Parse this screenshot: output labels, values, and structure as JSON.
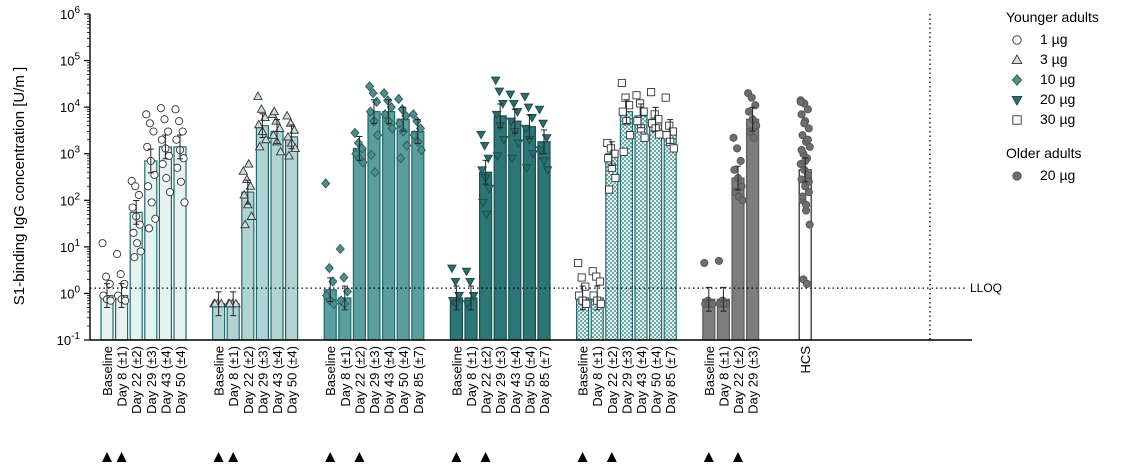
{
  "chart_data": {
    "type": "bar",
    "y_scale": "log",
    "ylim": [
      0.1,
      1000000
    ],
    "ylabel": "S1-binding IgG concentration [U/m ]",
    "y_tick_exponents": [
      -1,
      0,
      1,
      2,
      3,
      4,
      5,
      6
    ],
    "y_tick_base": "10",
    "lloq": {
      "value": 1.3,
      "label": "LLOQ"
    },
    "legend_groups": [
      {
        "title": "Younger adults",
        "entries": [
          {
            "label": "1 µg",
            "marker": "circle-open"
          },
          {
            "label": "3 µg",
            "marker": "triangle-up-light"
          },
          {
            "label": "10 µg",
            "marker": "diamond-teal"
          },
          {
            "label": "20 µg",
            "marker": "triangle-down-dark"
          },
          {
            "label": "30 µg",
            "marker": "square-open"
          }
        ]
      },
      {
        "title": "Older adults",
        "entries": [
          {
            "label": "20 µg",
            "marker": "circle-gray"
          }
        ]
      }
    ],
    "groups": [
      {
        "name": "Younger adults 1 µg",
        "marker": "circle-open",
        "bar_fill": "#e5f2f2",
        "bar_stroke": "#1f6b6b",
        "pattern": "",
        "categories": [
          "Baseline",
          "Day 8 (±1)",
          "Day 22 (±2)",
          "Day 29 (±3)",
          "Day 43 (±4)",
          "Day 50 (±4)"
        ],
        "values": [
          0.9,
          0.9,
          55,
          700,
          1400,
          1400
        ],
        "points": [
          [
            12,
            2.3,
            1.6,
            0.9,
            0.75,
            0.7
          ],
          [
            7,
            2.6,
            1.6,
            0.9,
            0.75,
            0.7
          ],
          [
            260,
            200,
            130,
            70,
            45,
            30,
            20,
            12,
            8,
            6
          ],
          [
            7000,
            4500,
            3000,
            1400,
            700,
            350,
            200,
            90,
            40,
            25
          ],
          [
            9500,
            5500,
            3000,
            2000,
            1300,
            900,
            600,
            300,
            150
          ],
          [
            9000,
            5000,
            3000,
            2000,
            1200,
            800,
            500,
            250,
            90
          ]
        ],
        "markers": [
          1,
          2
        ]
      },
      {
        "name": "Younger adults 3 µg",
        "marker": "triangle-up-light",
        "bar_fill": "#b2d3d3",
        "bar_stroke": "#1f6b6b",
        "pattern": "",
        "categories": [
          "Baseline",
          "Day 8 (±1)",
          "Day 22 (±2)",
          "Day 29 (±3)",
          "Day 43 (±4)",
          "Day 50 (±4)"
        ],
        "values": [
          0.6,
          0.6,
          150,
          4000,
          3000,
          2300
        ],
        "points": [
          [
            0.6,
            0.6,
            0.6,
            0.6
          ],
          [
            0.6,
            0.6,
            0.6,
            0.6
          ],
          [
            420,
            280,
            200,
            130,
            80,
            45,
            30,
            600
          ],
          [
            17000,
            9000,
            6000,
            4200,
            3000,
            2000,
            1400
          ],
          [
            7000,
            5000,
            3500,
            2500,
            1800,
            1100,
            8000
          ],
          [
            6500,
            4500,
            3200,
            2300,
            1700,
            1300,
            900
          ]
        ],
        "markers": [
          1,
          2
        ]
      },
      {
        "name": "Younger adults 10 µg",
        "marker": "diamond-teal",
        "bar_fill": "#5b9e9e",
        "bar_stroke": "#1f6b6b",
        "pattern": "",
        "categories": [
          "Baseline",
          "Day 8 (±1)",
          "Day 22 (±2)",
          "Day 29 (±3)",
          "Day 43 (±4)",
          "Day 50 (±4)",
          "Day 85 (±7)"
        ],
        "values": [
          1.2,
          0.8,
          1300,
          8000,
          8000,
          5500,
          3000
        ],
        "points": [
          [
            230,
            3.5,
            1.8,
            0.9,
            0.7,
            0.6
          ],
          [
            9,
            2.2,
            1.1,
            0.7,
            0.6
          ],
          [
            2800,
            1700,
            1300,
            1000,
            800,
            650
          ],
          [
            28000,
            20000,
            13000,
            8000,
            5000,
            2500,
            950,
            400
          ],
          [
            20000,
            14000,
            10000,
            7000,
            5000,
            3500
          ],
          [
            15000,
            9000,
            6500,
            4500,
            3000,
            1500,
            800
          ],
          [
            7000,
            5000,
            3500,
            2500,
            1800,
            1200
          ]
        ],
        "markers": [
          1,
          3
        ]
      },
      {
        "name": "Younger adults 20 µg",
        "marker": "triangle-down-dark",
        "bar_fill": "#2b7676",
        "bar_stroke": "#184f4f",
        "pattern": "",
        "categories": [
          "Baseline",
          "Day 8 (±1)",
          "Day 22 (±2)",
          "Day 29 (±3)",
          "Day 43 (±4)",
          "Day 50 (±4)",
          "Day 85 (±7)"
        ],
        "values": [
          0.8,
          0.8,
          400,
          6500,
          5000,
          3800,
          1800
        ],
        "points": [
          [
            3.5,
            1.8,
            0.9,
            0.7,
            0.6
          ],
          [
            3,
            1.8,
            0.9,
            0.6
          ],
          [
            2600,
            1500,
            800,
            450,
            300,
            180,
            90,
            50
          ],
          [
            38000,
            22000,
            12000,
            7000,
            4000,
            2000,
            900
          ],
          [
            19000,
            12000,
            8000,
            5000,
            3000,
            1700,
            800
          ],
          [
            17000,
            10000,
            6000,
            3500,
            2000,
            1000,
            500
          ],
          [
            9000,
            4500,
            2200,
            1200,
            700,
            450
          ]
        ],
        "markers": [
          1,
          3
        ]
      },
      {
        "name": "Younger adults 30 µg",
        "marker": "square-open",
        "bar_fill": "#cfe5e5",
        "bar_stroke": "#1f6b6b",
        "pattern": "checker",
        "categories": [
          "Baseline",
          "Day 8 (±1)",
          "Day 22 (±2)",
          "Day 29 (±3)",
          "Day 43 (±4)",
          "Day 50 (±4)",
          "Day 85 (±7)"
        ],
        "values": [
          0.8,
          0.8,
          1000,
          8000,
          6500,
          5500,
          3000
        ],
        "points": [
          [
            4.5,
            2.2,
            1.4,
            0.9,
            0.7,
            0.6
          ],
          [
            3,
            2.3,
            1.8,
            0.9,
            0.7,
            0.6
          ],
          [
            1700,
            1300,
            1000,
            800,
            500,
            300,
            170
          ],
          [
            33000,
            16000,
            11000,
            8000,
            5000,
            2500,
            1100
          ],
          [
            18000,
            12000,
            8000,
            5000,
            3500,
            2200
          ],
          [
            21000,
            7000,
            5500,
            4500,
            3500,
            2600
          ],
          [
            16000,
            4000,
            3000,
            2500,
            1800,
            1300
          ]
        ],
        "markers": [
          1,
          3
        ]
      },
      {
        "name": "Older adults 20 µg",
        "marker": "circle-gray",
        "bar_fill": "#7d7d7d",
        "bar_stroke": "#5a5a5a",
        "pattern": "",
        "categories": [
          "Baseline",
          "Day 8 (±1)",
          "Day 22 (±2)",
          "Day 29 (±3)"
        ],
        "values": [
          0.75,
          0.75,
          300,
          5500
        ],
        "points": [
          [
            4.5,
            0.7,
            0.6,
            0.6,
            0.6,
            0.6
          ],
          [
            5,
            0.7,
            0.6,
            0.6,
            0.6
          ],
          [
            2200,
            1300,
            700,
            450,
            300,
            200,
            150,
            120,
            100
          ],
          [
            20000,
            16000,
            11000,
            8000,
            5500,
            4000,
            3000,
            2200
          ]
        ],
        "markers": [
          1,
          3
        ]
      },
      {
        "name": "HCS",
        "marker": "circle-gray",
        "bar_fill": "#ffffff",
        "bar_stroke": "#222222",
        "pattern": "",
        "categories": [
          "HCS"
        ],
        "values": [
          450
        ],
        "points": [
          [
            14000,
            12000,
            9000,
            7000,
            5000,
            3500,
            2500,
            1800,
            1400,
            1000,
            800,
            600,
            450,
            350,
            280,
            200,
            150,
            100,
            60,
            30,
            2,
            1.6,
            13000,
            4500,
            2000,
            1200,
            700,
            250,
            120,
            80
          ]
        ],
        "markers": []
      }
    ]
  }
}
